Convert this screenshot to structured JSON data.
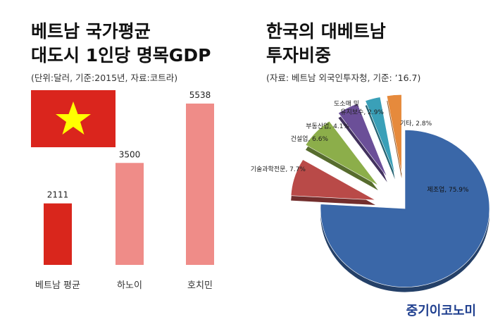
{
  "left_panel": {
    "title_line1": "베트남 국가평균",
    "title_line2": "대도시 1인당 명목GDP",
    "subtitle": "(단위:달러, 기준:2015년, 자료:코트라)"
  },
  "right_panel": {
    "title_line1": "한국의 대베트남",
    "title_line2": "투자비중",
    "subtitle": "(자료: 베트남 외국인투자청, 기준: ’16.7)"
  },
  "brand": "중기이코노미",
  "chart_data": [
    {
      "type": "bar",
      "categories": [
        "베트남 평균",
        "하노이",
        "호치민"
      ],
      "values": [
        2111,
        3500,
        5538
      ],
      "colors": [
        "#d9261c",
        "#ef8c88",
        "#ef8c88"
      ],
      "ylim": [
        0,
        5538
      ],
      "grid": false,
      "legend": "none"
    },
    {
      "type": "pie",
      "slices": [
        {
          "label": "제조업",
          "value": 75.9,
          "text": "제조업, 75.9%",
          "color": "#3a67a8"
        },
        {
          "label": "기술과학전문",
          "value": 7.7,
          "text": "기술과학전문, 7.7%",
          "color": "#b94a48"
        },
        {
          "label": "건설업",
          "value": 6.6,
          "text": "건설업, 6.6%",
          "color": "#8cae4a"
        },
        {
          "label": "부동산업",
          "value": 4.1,
          "text": "부동산업, 4.1%",
          "color": "#6b4f98"
        },
        {
          "label": "도소매 및 유지보수",
          "value": 2.9,
          "text_line1": "도소매 및",
          "text_line2": "유지보수, 2.9%",
          "color": "#3aa0b8"
        },
        {
          "label": "기타",
          "value": 2.8,
          "text": "기타, 2.8%",
          "color": "#e68a3c"
        }
      ],
      "legend": "none"
    }
  ],
  "flag": {
    "background": "#da251d",
    "star": "#ffff00"
  }
}
